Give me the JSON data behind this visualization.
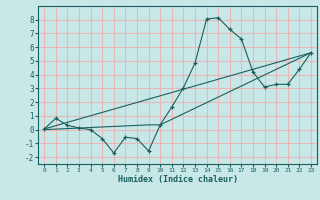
{
  "xlabel": "Humidex (Indice chaleur)",
  "ylabel": "",
  "background_color": "#c8e8e8",
  "grid_color": "#e8b8b8",
  "line_color": "#1a5f5f",
  "xlim": [
    -0.5,
    23.5
  ],
  "ylim": [
    -2.5,
    9.0
  ],
  "xticks": [
    0,
    1,
    2,
    3,
    4,
    5,
    6,
    7,
    8,
    9,
    10,
    11,
    12,
    13,
    14,
    15,
    16,
    17,
    18,
    19,
    20,
    21,
    22,
    23
  ],
  "yticks": [
    -2,
    -1,
    0,
    1,
    2,
    3,
    4,
    5,
    6,
    7,
    8
  ],
  "zigzag_x": [
    0,
    1,
    2,
    3,
    4,
    5,
    6,
    7,
    8,
    9,
    10,
    11,
    12,
    13,
    14,
    15,
    16,
    17,
    18,
    19,
    20,
    21,
    22,
    23
  ],
  "zigzag_y": [
    0.05,
    0.82,
    0.32,
    0.12,
    0.0,
    -0.65,
    -1.7,
    -0.55,
    -0.65,
    -1.55,
    0.35,
    1.65,
    3.05,
    4.85,
    8.05,
    8.15,
    7.3,
    6.6,
    4.2,
    3.1,
    3.3,
    3.3,
    4.4,
    5.6
  ],
  "trend1_x": [
    0,
    23
  ],
  "trend1_y": [
    0.05,
    5.6
  ],
  "trend2_x": [
    0,
    9,
    10,
    23
  ],
  "trend2_y": [
    0.0,
    0.35,
    0.35,
    5.6
  ]
}
